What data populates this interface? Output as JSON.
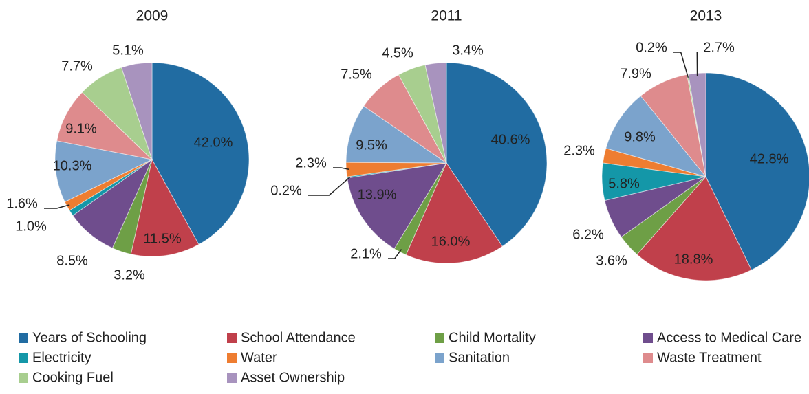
{
  "legend": {
    "categories": [
      "Years of Schooling",
      "School Attendance",
      "Child Mortality",
      "Access to Medical Care",
      "Electricity",
      "Water",
      "Sanitation",
      "Waste Treatment",
      "Cooking Fuel",
      "Asset Ownership"
    ],
    "colors": [
      "#216ca2",
      "#c0404b",
      "#6e9f46",
      "#6f4d8d",
      "#1497a8",
      "#ee7d31",
      "#7ba3cc",
      "#de8b8d",
      "#a8ce8f",
      "#a893be"
    ]
  },
  "chart_data": [
    {
      "type": "pie",
      "title": "2009",
      "values": [
        42.0,
        11.5,
        3.2,
        8.5,
        1.0,
        1.6,
        10.3,
        9.1,
        7.7,
        5.1
      ],
      "value_labels": [
        "42.0%",
        "11.5%",
        "3.2%",
        "8.5%",
        "1.0%",
        "1.6%",
        "10.3%",
        "9.1%",
        "7.7%",
        "5.1%"
      ]
    },
    {
      "type": "pie",
      "title": "2011",
      "values": [
        40.6,
        16.0,
        2.1,
        13.9,
        0.2,
        2.3,
        9.5,
        7.5,
        4.5,
        3.4
      ],
      "value_labels": [
        "40.6%",
        "16.0%",
        "2.1%",
        "13.9%",
        "0.2%",
        "2.3%",
        "9.5%",
        "7.5%",
        "4.5%",
        "3.4%"
      ]
    },
    {
      "type": "pie",
      "title": "2013",
      "values": [
        42.8,
        18.8,
        3.6,
        6.2,
        5.8,
        2.3,
        9.8,
        7.9,
        0.2,
        2.7
      ],
      "value_labels": [
        "42.8%",
        "18.8%",
        "3.6%",
        "6.2%",
        "5.8%",
        "2.3%",
        "9.8%",
        "7.9%",
        "0.2%",
        "2.7%"
      ]
    }
  ]
}
